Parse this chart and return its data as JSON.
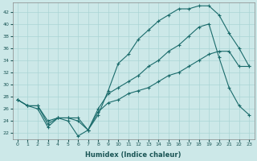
{
  "xlabel": "Humidex (Indice chaleur)",
  "ylabel": "",
  "bg_color": "#cce8e8",
  "grid_color": "#aad4d4",
  "line_color": "#1a6b6b",
  "xlim": [
    -0.5,
    23.5
  ],
  "ylim": [
    21.0,
    43.5
  ],
  "xticks": [
    0,
    1,
    2,
    3,
    4,
    5,
    6,
    7,
    8,
    9,
    10,
    11,
    12,
    13,
    14,
    15,
    16,
    17,
    18,
    19,
    20,
    21,
    22,
    23
  ],
  "yticks": [
    22,
    24,
    26,
    28,
    30,
    32,
    34,
    36,
    38,
    40,
    42
  ],
  "line1_x": [
    0,
    1,
    2,
    3,
    4,
    5,
    6,
    7,
    8,
    9,
    10,
    11,
    12,
    13,
    14,
    15,
    16,
    17,
    18,
    19,
    20,
    21,
    22,
    23
  ],
  "line1_y": [
    27.5,
    26.5,
    26.0,
    23.0,
    24.5,
    24.0,
    21.5,
    22.5,
    25.0,
    29.0,
    33.5,
    35.0,
    37.5,
    39.0,
    40.5,
    41.5,
    42.5,
    42.5,
    43.0,
    43.0,
    41.5,
    38.5,
    36.0,
    33.0
  ],
  "line2_x": [
    0,
    1,
    2,
    3,
    4,
    5,
    6,
    7,
    8,
    9,
    10,
    11,
    12,
    13,
    14,
    15,
    16,
    17,
    18,
    19,
    20,
    21,
    22,
    23
  ],
  "line2_y": [
    27.5,
    26.5,
    26.5,
    23.5,
    24.5,
    24.5,
    24.0,
    22.5,
    26.0,
    28.5,
    29.5,
    30.5,
    31.5,
    33.0,
    34.0,
    35.5,
    36.5,
    38.0,
    39.5,
    40.0,
    34.5,
    29.5,
    26.5,
    25.0
  ],
  "line3_x": [
    0,
    1,
    2,
    3,
    4,
    5,
    6,
    7,
    8,
    9,
    10,
    11,
    12,
    13,
    14,
    15,
    16,
    17,
    18,
    19,
    20,
    21,
    22,
    23
  ],
  "line3_y": [
    27.5,
    26.5,
    26.5,
    24.0,
    24.5,
    24.5,
    24.5,
    22.5,
    25.5,
    27.0,
    27.5,
    28.5,
    29.0,
    29.5,
    30.5,
    31.5,
    32.0,
    33.0,
    34.0,
    35.0,
    35.5,
    35.5,
    33.0,
    33.0
  ]
}
